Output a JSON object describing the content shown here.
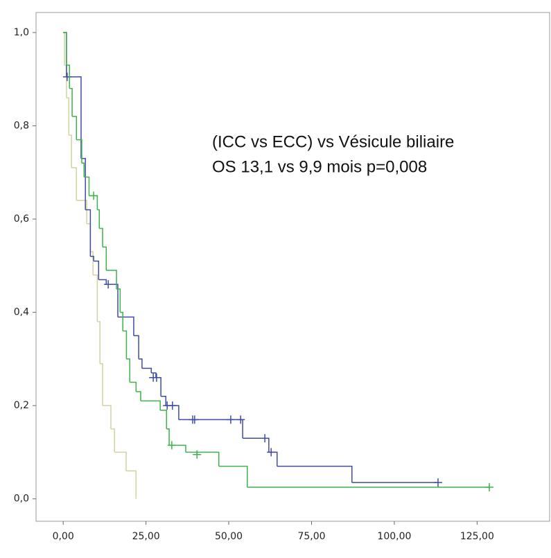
{
  "chart_data": {
    "type": "kaplan-meier",
    "annotations": [
      "(ICC vs ECC) vs Vésicule biliaire",
      "OS 13,1 vs 9,9 mois  p=0,008"
    ],
    "xlim": [
      -8.2,
      146.9
    ],
    "ylim": [
      -0.048,
      1.043
    ],
    "xticks": [
      {
        "value": 0,
        "label": "0,00"
      },
      {
        "value": 25,
        "label": "25,00"
      },
      {
        "value": 50,
        "label": "50,00"
      },
      {
        "value": 75,
        "label": "75,00"
      },
      {
        "value": 100,
        "label": "100,00"
      },
      {
        "value": 125,
        "label": "125,00"
      }
    ],
    "yticks": [
      {
        "value": 0,
        "label": "0,0"
      },
      {
        "value": 0.2,
        "label": "0,2"
      },
      {
        "value": 0.4,
        "label": "0,4"
      },
      {
        "value": 0.6,
        "label": "0,6"
      },
      {
        "value": 0.8,
        "label": "0,8"
      },
      {
        "value": 1,
        "label": "1,0"
      }
    ],
    "series": [
      {
        "color": "#d2d29e",
        "x": [
          0,
          0.4,
          1.0,
          1.7,
          2.5,
          4.0,
          7.1,
          8.2,
          9.0,
          10.3,
          11.1,
          11.9,
          14.4,
          15.5,
          19.0,
          22.0
        ],
        "values": [
          1.0,
          0.93,
          0.86,
          0.78,
          0.71,
          0.64,
          0.59,
          0.53,
          0.48,
          0.38,
          0.29,
          0.2,
          0.15,
          0.1,
          0.06,
          0.0
        ],
        "censored_x": [],
        "censored_values": []
      },
      {
        "color": "#3f4ba3",
        "x": [
          0,
          1.0,
          5.4,
          6.7,
          8.2,
          9.2,
          10.7,
          13.0,
          16.5,
          21.3,
          22.8,
          23.8,
          26.6,
          28.0,
          29.5,
          31.0,
          34.9,
          54.2,
          62.1,
          64.6,
          87.2,
          113.2
        ],
        "values": [
          1.0,
          0.905,
          0.73,
          0.62,
          0.52,
          0.51,
          0.47,
          0.46,
          0.39,
          0.35,
          0.3,
          0.28,
          0.27,
          0.26,
          0.22,
          0.2,
          0.17,
          0.13,
          0.1,
          0.07,
          0.035,
          0.035
        ],
        "censored_x": [
          1.2,
          13.6,
          27.2,
          28.2,
          31.4,
          33.0,
          39.1,
          39.7,
          50.6,
          53.6,
          60.9,
          62.8,
          113.2
        ],
        "censored_values": [
          0.905,
          0.46,
          0.26,
          0.26,
          0.2,
          0.2,
          0.17,
          0.17,
          0.17,
          0.17,
          0.13,
          0.1,
          0.035
        ]
      },
      {
        "color": "#3db24b",
        "x": [
          0,
          1.0,
          1.9,
          2.7,
          4.0,
          5.6,
          6.3,
          7.8,
          10.3,
          10.9,
          11.9,
          13.0,
          16.1,
          17.2,
          18.0,
          19.1,
          20.1,
          22.0,
          23.4,
          29.3,
          31.2,
          32.0,
          37.0,
          47.0,
          55.6,
          128.7
        ],
        "values": [
          1.0,
          0.93,
          0.88,
          0.82,
          0.77,
          0.72,
          0.69,
          0.65,
          0.62,
          0.58,
          0.54,
          0.49,
          0.45,
          0.4,
          0.36,
          0.3,
          0.25,
          0.23,
          0.21,
          0.19,
          0.15,
          0.115,
          0.1,
          0.07,
          0.025,
          0.025
        ],
        "censored_x": [
          9.2,
          32.8,
          40.4,
          128.7
        ],
        "censored_values": [
          0.65,
          0.115,
          0.095,
          0.025
        ]
      }
    ]
  }
}
